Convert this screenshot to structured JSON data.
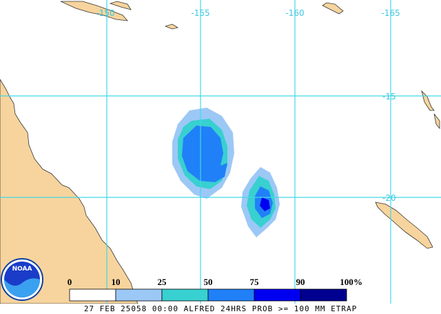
{
  "map": {
    "lon_labels": [
      "-150",
      "-155",
      "-160",
      "-165"
    ],
    "lat_labels": [
      "-15",
      "-20"
    ],
    "logo": "NOAA"
  },
  "legend": {
    "ticks": [
      0,
      10,
      25,
      50,
      75,
      90,
      100
    ],
    "unit": "%",
    "colors": [
      "#ffffff",
      "#9cc8f6",
      "#38d0d0",
      "#2080f8",
      "#0000f0",
      "#000090"
    ]
  },
  "caption": "27 FEB 25058 00:00 ALFRED 24HRS PROB >= 100 MM ETRAP"
}
